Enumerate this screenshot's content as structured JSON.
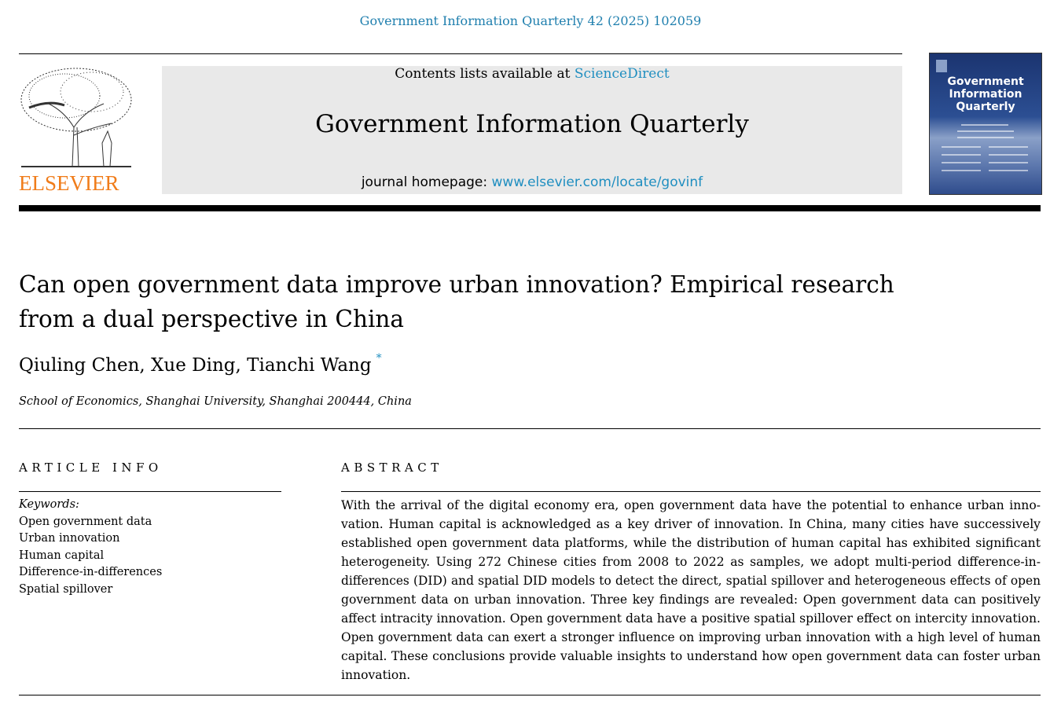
{
  "header": {
    "citation": "Government Information Quarterly 42 (2025) 102059",
    "contents_prefix": "Contents lists available at ",
    "contents_link": "ScienceDirect",
    "journal_title": "Government Information Quarterly",
    "homepage_prefix": "journal homepage: ",
    "homepage_link": "www.elsevier.com/locate/govinf",
    "publisher_logo": "ELSEVIER",
    "cover_title": "Government Information Quarterly"
  },
  "article": {
    "title_line1": "Can open government data improve urban innovation? Empirical research",
    "title_line2": "from a dual perspective in China",
    "authors": [
      "Qiuling Chen",
      "Xue Ding",
      "Tianchi Wang"
    ],
    "corresponding_mark": "*",
    "affiliation": "School of Economics, Shanghai University, Shanghai 200444, China"
  },
  "article_info": {
    "heading": "ARTICLE INFO",
    "keywords_label": "Keywords:",
    "keywords": [
      "Open government data",
      "Urban innovation",
      "Human capital",
      "Difference-in-differences",
      "Spatial spillover"
    ]
  },
  "abstract": {
    "heading": "ABSTRACT",
    "lines": [
      "With the arrival of the digital economy era, open government data have the potential to enhance urban inno-",
      "vation. Human capital is acknowledged as a key driver of innovation. In China, many cities have successively",
      "established open government data platforms, while the distribution of human capital has exhibited significant",
      "heterogeneity. Using 272 Chinese cities from 2008 to 2022 as samples, we adopt multi-period difference-in-",
      "differences (DID) and spatial DID models to detect the direct, spatial spillover and heterogeneous effects of open",
      "government data on urban innovation. Three key findings are revealed: Open government data can positively",
      "affect intracity innovation. Open government data have a positive spatial spillover effect on intercity innovation.",
      "Open government data can exert a stronger influence on improving urban innovation with a high level of human",
      "capital. These conclusions provide valuable insights to understand how open government data can foster urban",
      "innovation."
    ]
  }
}
